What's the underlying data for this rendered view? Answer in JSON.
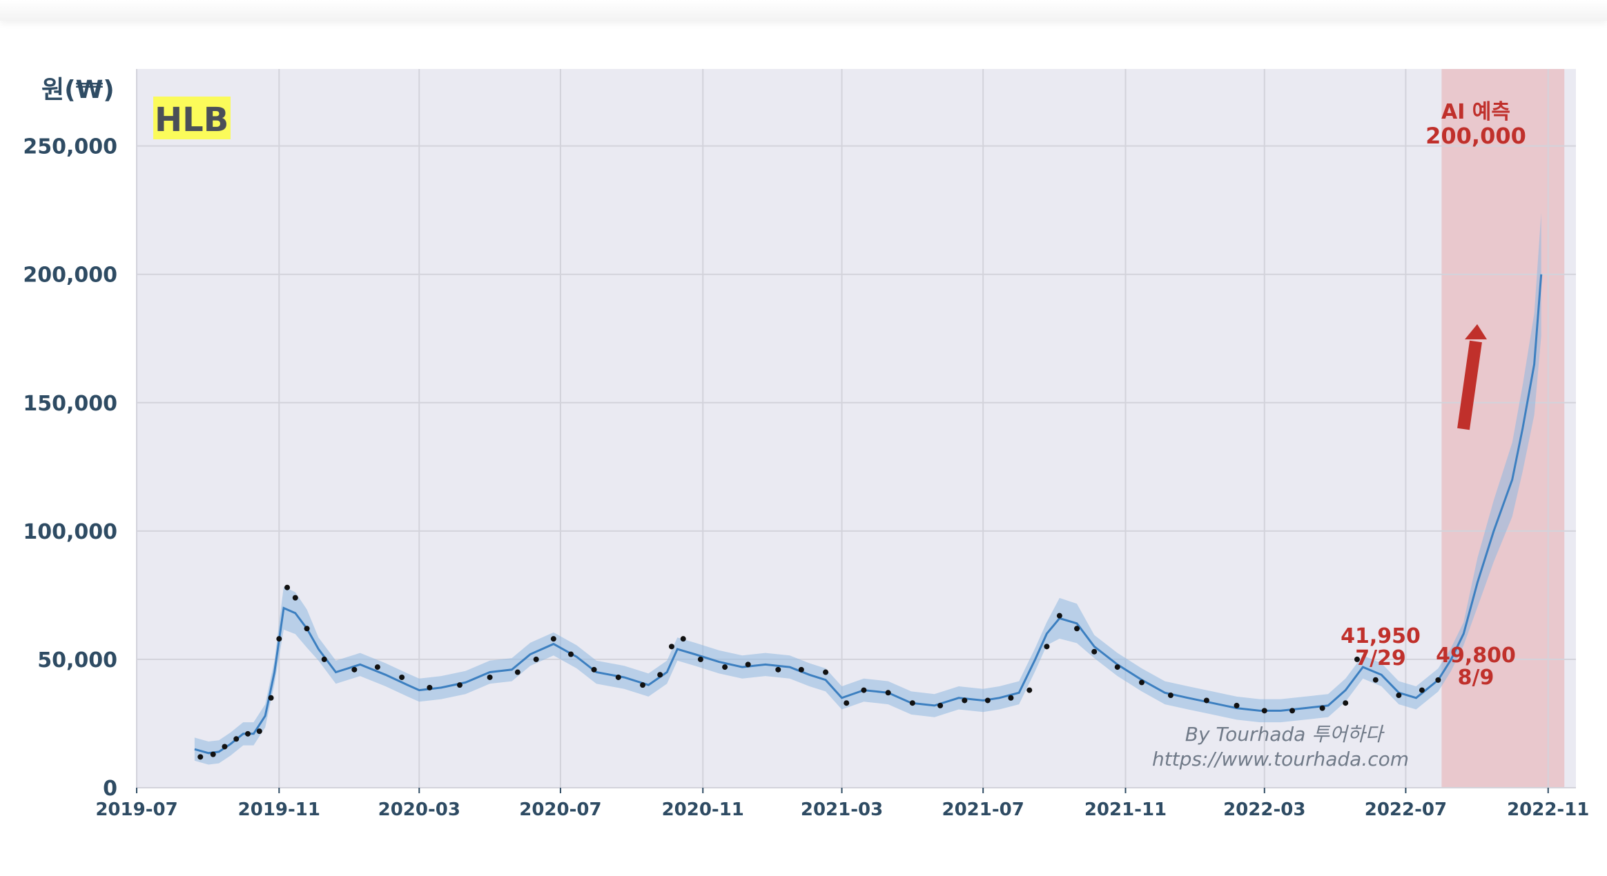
{
  "chart_data": {
    "type": "line",
    "title": "HLB",
    "ylabel": "원(₩)",
    "xlabel": "",
    "ylim": [
      0,
      280000
    ],
    "xlim": [
      "2019-07-01",
      "2022-11-25"
    ],
    "grid": true,
    "yticks": [
      0,
      50000,
      100000,
      150000,
      200000,
      250000
    ],
    "ytick_labels": [
      "0",
      "50,000",
      "100,000",
      "150,000",
      "200,000",
      "250,000"
    ],
    "xticks": [
      "2019-07-01",
      "2019-11-01",
      "2020-03-01",
      "2020-07-01",
      "2020-11-01",
      "2021-03-01",
      "2021-07-01",
      "2021-11-01",
      "2022-03-01",
      "2022-07-01",
      "2022-11-01"
    ],
    "xtick_labels": [
      "2019-07",
      "2019-11",
      "2020-03",
      "2020-07",
      "2020-11",
      "2021-03",
      "2021-07",
      "2021-11",
      "2022-03",
      "2022-07",
      "2022-11"
    ],
    "series": [
      {
        "type": "line",
        "role": "forecast",
        "color": "#3c7fc0",
        "x": [
          "2019-08-20",
          "2019-09-01",
          "2019-09-10",
          "2019-09-20",
          "2019-10-01",
          "2019-10-10",
          "2019-10-20",
          "2019-10-28",
          "2019-11-05",
          "2019-11-15",
          "2019-11-25",
          "2019-12-05",
          "2019-12-20",
          "2020-01-10",
          "2020-02-01",
          "2020-02-20",
          "2020-03-01",
          "2020-03-20",
          "2020-04-10",
          "2020-05-01",
          "2020-05-20",
          "2020-06-05",
          "2020-06-25",
          "2020-07-15",
          "2020-08-01",
          "2020-08-25",
          "2020-09-15",
          "2020-10-01",
          "2020-10-10",
          "2020-10-25",
          "2020-11-15",
          "2020-12-05",
          "2020-12-25",
          "2021-01-15",
          "2021-02-01",
          "2021-02-15",
          "2021-03-01",
          "2021-03-20",
          "2021-04-10",
          "2021-04-30",
          "2021-05-20",
          "2021-06-10",
          "2021-07-01",
          "2021-07-15",
          "2021-08-01",
          "2021-08-15",
          "2021-08-25",
          "2021-09-05",
          "2021-09-20",
          "2021-10-05",
          "2021-10-25",
          "2021-11-15",
          "2021-12-05",
          "2021-12-25",
          "2022-01-15",
          "2022-02-05",
          "2022-02-25",
          "2022-03-15",
          "2022-04-05",
          "2022-04-25",
          "2022-05-10",
          "2022-05-25",
          "2022-06-10",
          "2022-06-25",
          "2022-07-10",
          "2022-07-29",
          "2022-08-09",
          "2022-08-20",
          "2022-09-01",
          "2022-09-15",
          "2022-10-01",
          "2022-10-10",
          "2022-10-20",
          "2022-10-26"
        ],
        "y": [
          15000,
          13500,
          14000,
          17000,
          21000,
          21000,
          28000,
          45000,
          70000,
          68000,
          62000,
          54000,
          45000,
          48000,
          44000,
          40000,
          38000,
          39000,
          41000,
          45000,
          46000,
          52000,
          56000,
          51000,
          45000,
          43000,
          40000,
          45000,
          54000,
          52000,
          49000,
          47000,
          48000,
          47000,
          44000,
          42000,
          35000,
          38000,
          37000,
          33000,
          32000,
          35000,
          34000,
          35000,
          37000,
          50000,
          60000,
          66000,
          64000,
          55000,
          48000,
          42000,
          37000,
          35000,
          33000,
          31000,
          30000,
          30000,
          31000,
          32000,
          38000,
          47000,
          44000,
          37000,
          35000,
          41950,
          49800,
          60000,
          80000,
          100000,
          120000,
          140000,
          165000,
          200000
        ]
      },
      {
        "type": "scatter",
        "role": "actual",
        "color": "#111111",
        "x": [
          "2019-08-25",
          "2019-09-05",
          "2019-09-15",
          "2019-09-25",
          "2019-10-05",
          "2019-10-15",
          "2019-10-25",
          "2019-11-01",
          "2019-11-08",
          "2019-11-15",
          "2019-11-25",
          "2019-12-10",
          "2020-01-05",
          "2020-01-25",
          "2020-02-15",
          "2020-03-10",
          "2020-04-05",
          "2020-05-01",
          "2020-05-25",
          "2020-06-10",
          "2020-06-25",
          "2020-07-10",
          "2020-07-30",
          "2020-08-20",
          "2020-09-10",
          "2020-09-25",
          "2020-10-05",
          "2020-10-15",
          "2020-10-30",
          "2020-11-20",
          "2020-12-10",
          "2021-01-05",
          "2021-01-25",
          "2021-02-15",
          "2021-03-05",
          "2021-03-20",
          "2021-04-10",
          "2021-05-01",
          "2021-05-25",
          "2021-06-15",
          "2021-07-05",
          "2021-07-25",
          "2021-08-10",
          "2021-08-25",
          "2021-09-05",
          "2021-09-20",
          "2021-10-05",
          "2021-10-25",
          "2021-11-15",
          "2021-12-10",
          "2022-01-10",
          "2022-02-05",
          "2022-03-01",
          "2022-03-25",
          "2022-04-20",
          "2022-05-10",
          "2022-05-20",
          "2022-06-05",
          "2022-06-25",
          "2022-07-15",
          "2022-07-29"
        ],
        "y": [
          12000,
          13000,
          16000,
          19000,
          21000,
          22000,
          35000,
          58000,
          78000,
          74000,
          62000,
          50000,
          46000,
          47000,
          43000,
          39000,
          40000,
          43000,
          45000,
          50000,
          58000,
          52000,
          46000,
          43000,
          40000,
          44000,
          55000,
          58000,
          50000,
          47000,
          48000,
          46000,
          46000,
          45000,
          33000,
          38000,
          37000,
          33000,
          32000,
          34000,
          34000,
          35000,
          38000,
          55000,
          67000,
          62000,
          53000,
          47000,
          41000,
          36000,
          34000,
          32000,
          30000,
          30000,
          31000,
          33000,
          50000,
          42000,
          36000,
          38000,
          41950
        ]
      }
    ],
    "forecast_region": {
      "from": "2022-08-01",
      "to": "2022-11-15",
      "color": "#e88a8a"
    },
    "annotations": [
      {
        "text": "AI 예측",
        "x": "2022-09-25",
        "y": 265000
      },
      {
        "text": "200,000",
        "x": "2022-09-25",
        "y": 255000
      },
      {
        "text": "41,950",
        "x": "2022-07-29",
        "y": 57000
      },
      {
        "text": "7/29",
        "x": "2022-07-29",
        "y": 49000
      },
      {
        "text": "49,800",
        "x": "2022-09-25",
        "y": 49000
      },
      {
        "text": "8/9",
        "x": "2022-09-25",
        "y": 41000
      }
    ],
    "watermark": [
      "By Tourhada 투어하다",
      "https://www.tourhada.com"
    ]
  }
}
